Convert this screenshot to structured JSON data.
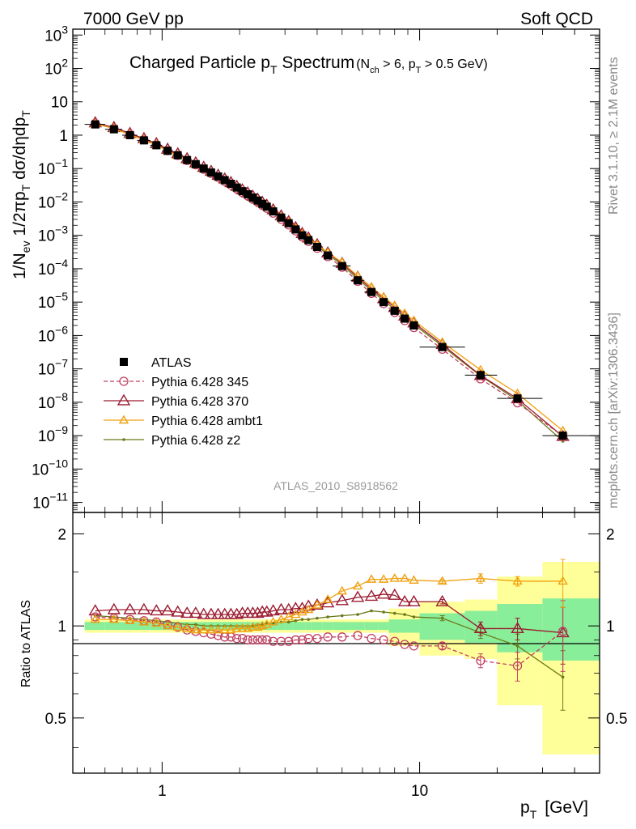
{
  "header": {
    "left": "7000 GeV pp",
    "right": "Soft QCD"
  },
  "side_labels": {
    "rivet": "Rivet 3.1.10, ≥ 2.1M events",
    "mcplots": "mcplots.cern.ch [arXiv:1306.3436]"
  },
  "main_plot": {
    "title_main": "Charged Particle p",
    "title_main_sub": "T",
    "title_main_rest": " Spectrum",
    "title_cut": "(N",
    "title_cut_sub1": "ch",
    "title_cut_mid": " > 6, p",
    "title_cut_sub2": "T",
    "title_cut_rest": " > 0.5 GeV)",
    "analysis_id": "ATLAS_2010_S8918562",
    "ylabel": "1/N_ev 1/2πp_T dσ/dηdp_T"
  },
  "ratio_plot": {
    "ylabel": "Ratio to ATLAS",
    "xlabel": "p",
    "xlabel_sub": "T",
    "xlabel_unit": "[GeV]"
  },
  "legend": [
    {
      "name": "ATLAS",
      "color": "#000000",
      "marker": "square",
      "dash": "none"
    },
    {
      "name": "Pythia 6.428 345",
      "color": "#c04060",
      "marker": "circle",
      "dash": "dashed"
    },
    {
      "name": "Pythia 6.428 370",
      "color": "#9b1b30",
      "marker": "triangle",
      "dash": "solid"
    },
    {
      "name": "Pythia 6.428 ambt1",
      "color": "#f0a010",
      "marker": "triangle",
      "dash": "solid"
    },
    {
      "name": "Pythia 6.428 z2",
      "color": "#6b7a1a",
      "marker": "dot",
      "dash": "solid"
    }
  ],
  "chart_data": {
    "type": "scatter",
    "x_scale": "log",
    "xlim": [
      0.45,
      50
    ],
    "main_ylim": [
      5e-12,
      1500
    ],
    "main_y_scale": "log",
    "ratio_ylim": [
      0.33,
      2.35
    ],
    "ratio_y_scale": "log",
    "main_yticks": [
      {
        "v": 1000.0,
        "label": "10^3"
      },
      {
        "v": 100.0,
        "label": "10^2"
      },
      {
        "v": 10.0,
        "label": "10"
      },
      {
        "v": 1,
        "label": "1"
      },
      {
        "v": 0.1,
        "label": "10^-1"
      },
      {
        "v": 0.01,
        "label": "10^-2"
      },
      {
        "v": 0.001,
        "label": "10^-3"
      },
      {
        "v": 0.0001,
        "label": "10^-4"
      },
      {
        "v": 1e-05,
        "label": "10^-5"
      },
      {
        "v": 1e-06,
        "label": "10^-6"
      },
      {
        "v": 1e-07,
        "label": "10^-7"
      },
      {
        "v": 1e-08,
        "label": "10^-8"
      },
      {
        "v": 1e-09,
        "label": "10^-9"
      },
      {
        "v": 1e-10,
        "label": "10^-10"
      },
      {
        "v": 1e-11,
        "label": "10^-11"
      }
    ],
    "ratio_yticks": [
      {
        "v": 0.5,
        "label": "0.5"
      },
      {
        "v": 1,
        "label": "1"
      },
      {
        "v": 2,
        "label": "2"
      }
    ],
    "xticks": [
      {
        "v": 1,
        "label": "1"
      },
      {
        "v": 10,
        "label": "10"
      }
    ],
    "x": [
      0.55,
      0.65,
      0.75,
      0.85,
      0.95,
      1.05,
      1.15,
      1.25,
      1.35,
      1.45,
      1.55,
      1.65,
      1.75,
      1.85,
      1.95,
      2.05,
      2.15,
      2.25,
      2.35,
      2.45,
      2.55,
      2.7,
      2.9,
      3.1,
      3.3,
      3.5,
      3.7,
      4.0,
      4.4,
      5.0,
      5.75,
      6.5,
      7.25,
      8.0,
      8.75,
      9.5,
      12.25,
      17.25,
      24.0,
      36.0
    ],
    "atlas": [
      2.1,
      1.5,
      1.0,
      0.7,
      0.5,
      0.34,
      0.25,
      0.18,
      0.135,
      0.1,
      0.076,
      0.058,
      0.045,
      0.035,
      0.027,
      0.021,
      0.017,
      0.0135,
      0.011,
      0.0088,
      0.0072,
      0.0052,
      0.0034,
      0.0023,
      0.0015,
      0.001,
      0.00072,
      0.00045,
      0.00025,
      0.00012,
      4.5e-05,
      2e-05,
      1e-05,
      5.5e-06,
      3.2e-06,
      2e-06,
      4.5e-07,
      6.5e-08,
      1.3e-08,
      1e-09
    ],
    "atlas_bins": [
      [
        0.5,
        0.6
      ],
      [
        0.6,
        0.7
      ],
      [
        0.7,
        0.8
      ],
      [
        0.8,
        0.9
      ],
      [
        0.9,
        1.0
      ],
      [
        1.0,
        1.1
      ],
      [
        1.1,
        1.2
      ],
      [
        1.2,
        1.3
      ],
      [
        1.3,
        1.4
      ],
      [
        1.4,
        1.5
      ],
      [
        1.5,
        1.6
      ],
      [
        1.6,
        1.7
      ],
      [
        1.7,
        1.8
      ],
      [
        1.8,
        1.9
      ],
      [
        1.9,
        2.0
      ],
      [
        2.0,
        2.1
      ],
      [
        2.1,
        2.2
      ],
      [
        2.2,
        2.3
      ],
      [
        2.3,
        2.4
      ],
      [
        2.4,
        2.5
      ],
      [
        2.5,
        2.6
      ],
      [
        2.6,
        2.8
      ],
      [
        2.8,
        3.0
      ],
      [
        3.0,
        3.2
      ],
      [
        3.2,
        3.4
      ],
      [
        3.4,
        3.6
      ],
      [
        3.6,
        3.8
      ],
      [
        3.8,
        4.2
      ],
      [
        4.2,
        4.6
      ],
      [
        4.6,
        5.4
      ],
      [
        5.4,
        6.1
      ],
      [
        6.1,
        6.9
      ],
      [
        6.9,
        7.6
      ],
      [
        7.6,
        8.4
      ],
      [
        8.4,
        9.1
      ],
      [
        9.1,
        10
      ],
      [
        10,
        15
      ],
      [
        15,
        20
      ],
      [
        20,
        30
      ],
      [
        30,
        50
      ]
    ],
    "band_stat": [
      0.03,
      0.03,
      0.03,
      0.03,
      0.03,
      0.03,
      0.03,
      0.03,
      0.03,
      0.03,
      0.03,
      0.03,
      0.03,
      0.03,
      0.03,
      0.03,
      0.03,
      0.03,
      0.03,
      0.03,
      0.03,
      0.03,
      0.03,
      0.03,
      0.03,
      0.03,
      0.03,
      0.03,
      0.03,
      0.03,
      0.03,
      0.03,
      0.03,
      0.05,
      0.05,
      0.05,
      0.1,
      0.12,
      0.18,
      0.23
    ],
    "band_tot": [
      0.05,
      0.05,
      0.05,
      0.05,
      0.05,
      0.05,
      0.05,
      0.05,
      0.05,
      0.05,
      0.05,
      0.05,
      0.05,
      0.05,
      0.05,
      0.05,
      0.05,
      0.05,
      0.05,
      0.05,
      0.05,
      0.05,
      0.05,
      0.05,
      0.05,
      0.05,
      0.05,
      0.05,
      0.05,
      0.05,
      0.05,
      0.05,
      0.05,
      0.14,
      0.14,
      0.14,
      0.2,
      0.22,
      0.45,
      0.62
    ],
    "series": [
      {
        "name": "Pythia 6.428 345",
        "ratio": [
          1.07,
          1.06,
          1.05,
          1.04,
          1.03,
          1.01,
          0.99,
          0.97,
          0.96,
          0.95,
          0.94,
          0.93,
          0.92,
          0.92,
          0.91,
          0.91,
          0.9,
          0.9,
          0.9,
          0.9,
          0.9,
          0.89,
          0.89,
          0.89,
          0.9,
          0.9,
          0.91,
          0.91,
          0.92,
          0.92,
          0.93,
          0.91,
          0.9,
          0.89,
          0.87,
          0.86,
          0.86,
          0.77,
          0.74,
          0.96
        ],
        "ratio_err": [
          0,
          0,
          0,
          0,
          0,
          0,
          0,
          0,
          0,
          0,
          0,
          0,
          0,
          0,
          0,
          0,
          0,
          0,
          0,
          0,
          0,
          0,
          0,
          0,
          0,
          0,
          0,
          0,
          0,
          0,
          0,
          0,
          0,
          0,
          0,
          0,
          0.02,
          0.04,
          0.08,
          0.25
        ]
      },
      {
        "name": "Pythia 6.428 370",
        "ratio": [
          1.12,
          1.13,
          1.13,
          1.13,
          1.12,
          1.12,
          1.11,
          1.1,
          1.1,
          1.09,
          1.09,
          1.09,
          1.09,
          1.09,
          1.09,
          1.1,
          1.1,
          1.1,
          1.1,
          1.11,
          1.11,
          1.12,
          1.13,
          1.13,
          1.14,
          1.14,
          1.16,
          1.17,
          1.19,
          1.21,
          1.24,
          1.25,
          1.27,
          1.26,
          1.2,
          1.2,
          1.2,
          0.98,
          0.98,
          0.95
        ],
        "ratio_err": [
          0,
          0,
          0,
          0,
          0,
          0,
          0,
          0,
          0,
          0,
          0,
          0,
          0,
          0,
          0,
          0,
          0,
          0,
          0,
          0,
          0,
          0,
          0,
          0,
          0,
          0,
          0,
          0,
          0,
          0,
          0,
          0,
          0,
          0,
          0,
          0,
          0.02,
          0.05,
          0.08,
          0.2
        ]
      },
      {
        "name": "Pythia 6.428 ambt1",
        "ratio": [
          1.05,
          1.05,
          1.04,
          1.03,
          1.02,
          1.0,
          0.99,
          0.98,
          0.97,
          0.97,
          0.97,
          0.97,
          0.97,
          0.97,
          0.98,
          0.98,
          0.98,
          0.99,
          0.99,
          1.0,
          1.01,
          1.03,
          1.05,
          1.07,
          1.09,
          1.11,
          1.13,
          1.17,
          1.22,
          1.3,
          1.35,
          1.42,
          1.42,
          1.43,
          1.43,
          1.41,
          1.4,
          1.43,
          1.4,
          1.4
        ],
        "ratio_err": [
          0,
          0,
          0,
          0,
          0,
          0,
          0,
          0,
          0,
          0,
          0,
          0,
          0,
          0,
          0,
          0,
          0,
          0,
          0,
          0,
          0,
          0,
          0,
          0,
          0,
          0,
          0,
          0,
          0,
          0,
          0,
          0,
          0,
          0,
          0,
          0,
          0.02,
          0.05,
          0.05,
          0.25
        ]
      },
      {
        "name": "Pythia 6.428 z2",
        "ratio": [
          1.08,
          1.07,
          1.06,
          1.05,
          1.04,
          1.03,
          1.02,
          1.01,
          1.01,
          1.0,
          1.0,
          1.0,
          1.0,
          1.0,
          1.0,
          1.0,
          1.0,
          1.0,
          1.01,
          1.01,
          1.02,
          1.02,
          1.03,
          1.03,
          1.04,
          1.05,
          1.05,
          1.06,
          1.07,
          1.08,
          1.09,
          1.12,
          1.11,
          1.1,
          1.09,
          1.07,
          1.06,
          0.95,
          0.86,
          0.68
        ],
        "ratio_err": [
          0,
          0,
          0,
          0,
          0,
          0,
          0,
          0,
          0,
          0,
          0,
          0,
          0,
          0,
          0,
          0,
          0,
          0,
          0,
          0,
          0,
          0,
          0,
          0,
          0,
          0,
          0,
          0,
          0,
          0,
          0,
          0,
          0,
          0,
          0,
          0,
          0.02,
          0.04,
          0.08,
          0.15
        ]
      }
    ]
  }
}
